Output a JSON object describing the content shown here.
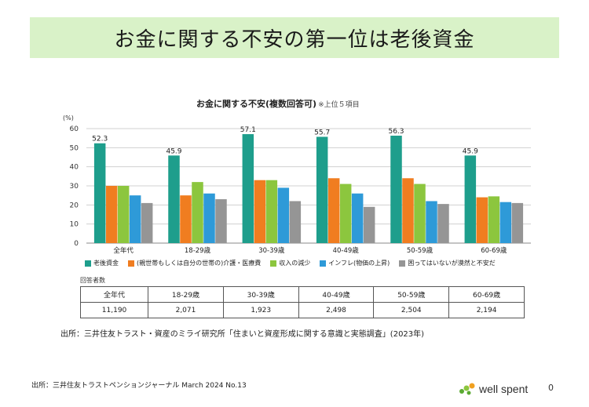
{
  "header": {
    "title": "お金に関する不安の第一位は老後資金"
  },
  "chart_title": {
    "main": "お金に関する不安(複数回答可)",
    "note": "※上位５項目"
  },
  "chart_data": {
    "type": "bar",
    "ylabel": "(%)",
    "ylim": [
      0,
      60
    ],
    "yticks": [
      0,
      10,
      20,
      30,
      40,
      50,
      60
    ],
    "grid": true,
    "legend_position": "bottom",
    "categories": [
      "全年代",
      "18-29歳",
      "30-39歳",
      "40-49歳",
      "50-59歳",
      "60-69歳"
    ],
    "series": [
      {
        "name": "老後資金",
        "color": "#1e9e8c",
        "values": [
          52.3,
          45.9,
          57.1,
          55.7,
          56.3,
          45.9
        ]
      },
      {
        "name": "(親世帯もしくは自分の世帯の)介護・医療費",
        "color": "#f07d20",
        "values": [
          30,
          25,
          33,
          34,
          34,
          24
        ]
      },
      {
        "name": "収入の減少",
        "color": "#8cc63e",
        "values": [
          30,
          32,
          33,
          31,
          31,
          24.5
        ]
      },
      {
        "name": "インフレ(物価の上昇)",
        "color": "#2e9ad8",
        "values": [
          25,
          26,
          29,
          26,
          22,
          21.5
        ]
      },
      {
        "name": "困ってはいないが漠然と不安だ",
        "color": "#959595",
        "values": [
          21,
          23,
          22,
          19,
          20.5,
          21
        ]
      }
    ],
    "data_labels": [
      "52.3",
      "45.9",
      "57.1",
      "55.7",
      "56.3",
      "45.9"
    ]
  },
  "respondents": {
    "label": "回答者数",
    "headers": [
      "全年代",
      "18-29歳",
      "30-39歳",
      "40-49歳",
      "50-59歳",
      "60-69歳"
    ],
    "values": [
      "11,190",
      "2,071",
      "1,923",
      "2,498",
      "2,504",
      "2,194"
    ]
  },
  "source_main": "出所：三井住友トラスト・資産のミライ研究所「住まいと資産形成に関する意識と実態調査」(2023年)",
  "source_footer": "出所：三井住友トラストペンションジャーナル March 2024 No.13",
  "logo": {
    "text": "well spent",
    "color": "#5aaa32"
  },
  "page_number": "0"
}
